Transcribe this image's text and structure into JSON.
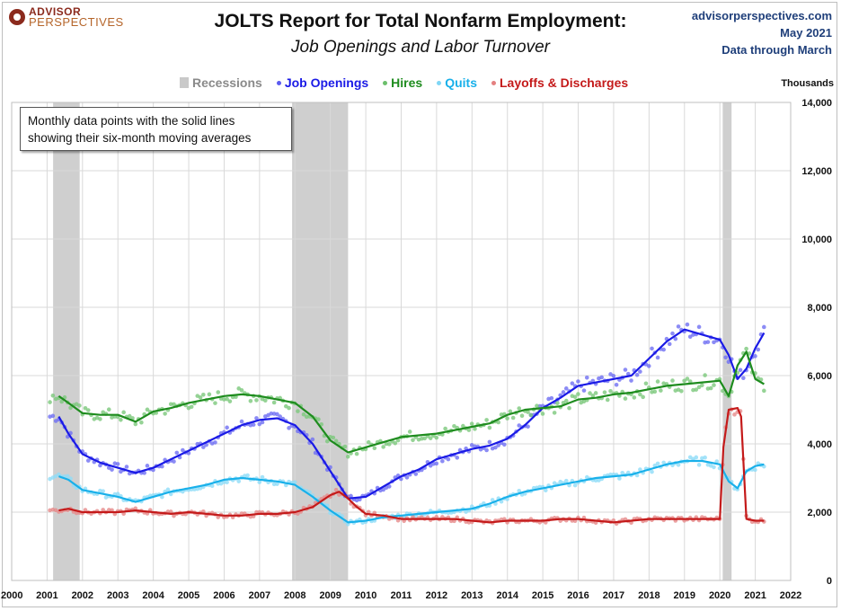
{
  "header": {
    "brand_line1": "ADVISOR",
    "brand_line2": "PERSPECTIVES",
    "title": "JOLTS Report for Total Nonfarm Employment:",
    "subtitle": "Job Openings and Labor Turnover",
    "site": "advisorperspectives.com",
    "date": "May 2021",
    "data_through": "Data through March"
  },
  "legend": {
    "recessions": "Recessions",
    "job_openings": "Job Openings",
    "hires": "Hires",
    "quits": "Quits",
    "layoffs": "Layoffs & Discharges"
  },
  "units_label": "Thousands",
  "note": {
    "line1": "Monthly data points with the solid lines",
    "line2": "showing their six-month moving averages"
  },
  "colors": {
    "job_openings": "#1a1ae6",
    "hires": "#1e8c1e",
    "quits": "#18b0ea",
    "layoffs": "#c41a1a",
    "recession": "#cfcfcf",
    "grid": "#d9d9d9"
  },
  "chart_data": {
    "type": "line",
    "x_axis": {
      "ticks": [
        "2000",
        "2001",
        "2002",
        "2003",
        "2004",
        "2005",
        "2006",
        "2007",
        "2008",
        "2009",
        "2010",
        "2011",
        "2012",
        "2013",
        "2014",
        "2015",
        "2016",
        "2017",
        "2018",
        "2019",
        "2020",
        "2021",
        "2022"
      ],
      "range": [
        2000,
        2022
      ]
    },
    "y_axis": {
      "ticks": [
        "0",
        "2,000",
        "4,000",
        "6,000",
        "8,000",
        "10,000",
        "12,000",
        "14,000"
      ],
      "range": [
        0,
        14000
      ],
      "side": "right"
    },
    "grid": true,
    "legend_position": "top",
    "recessions": [
      [
        2001.17,
        2001.92
      ],
      [
        2007.92,
        2009.5
      ],
      [
        2020.08,
        2020.33
      ]
    ],
    "series": [
      {
        "name": "Job Openings",
        "key": "job_openings",
        "x": [
          2001.33,
          2001.6,
          2002.0,
          2002.5,
          2003.0,
          2003.5,
          2004.0,
          2004.5,
          2005.0,
          2005.5,
          2006.0,
          2006.5,
          2007.0,
          2007.5,
          2008.0,
          2008.5,
          2009.0,
          2009.5,
          2010.0,
          2010.5,
          2011.0,
          2011.5,
          2012.0,
          2012.5,
          2013.0,
          2013.5,
          2014.0,
          2014.5,
          2015.0,
          2015.5,
          2016.0,
          2016.5,
          2017.0,
          2017.5,
          2018.0,
          2018.5,
          2019.0,
          2019.5,
          2020.0,
          2020.25,
          2020.5,
          2020.75,
          2021.0,
          2021.25
        ],
        "values": [
          4800,
          4300,
          3700,
          3450,
          3300,
          3150,
          3300,
          3550,
          3800,
          4050,
          4300,
          4550,
          4700,
          4750,
          4550,
          4000,
          3200,
          2400,
          2450,
          2750,
          3050,
          3250,
          3550,
          3700,
          3850,
          3950,
          4150,
          4550,
          5050,
          5350,
          5700,
          5800,
          5900,
          6000,
          6500,
          7000,
          7350,
          7200,
          7050,
          6600,
          5900,
          6200,
          6800,
          7250
        ]
      },
      {
        "name": "Hires",
        "key": "hires",
        "x": [
          2001.33,
          2001.6,
          2002.0,
          2002.5,
          2003.0,
          2003.5,
          2004.0,
          2004.5,
          2005.0,
          2005.5,
          2006.0,
          2006.5,
          2007.0,
          2007.5,
          2008.0,
          2008.5,
          2009.0,
          2009.5,
          2010.0,
          2010.5,
          2011.0,
          2011.5,
          2012.0,
          2012.5,
          2013.0,
          2013.5,
          2014.0,
          2014.5,
          2015.0,
          2015.5,
          2016.0,
          2016.5,
          2017.0,
          2017.5,
          2018.0,
          2018.5,
          2019.0,
          2019.5,
          2020.0,
          2020.25,
          2020.5,
          2020.75,
          2021.0,
          2021.25
        ],
        "values": [
          5400,
          5200,
          4900,
          4850,
          4850,
          4650,
          4950,
          5050,
          5200,
          5300,
          5400,
          5450,
          5400,
          5300,
          5200,
          4800,
          4100,
          3750,
          3900,
          4050,
          4200,
          4250,
          4300,
          4400,
          4500,
          4600,
          4850,
          5000,
          5050,
          5100,
          5300,
          5350,
          5450,
          5500,
          5600,
          5700,
          5750,
          5800,
          5850,
          5400,
          6300,
          6700,
          5900,
          5750
        ]
      },
      {
        "name": "Quits",
        "key": "quits",
        "x": [
          2001.33,
          2001.6,
          2002.0,
          2002.5,
          2003.0,
          2003.5,
          2004.0,
          2004.5,
          2005.0,
          2005.5,
          2006.0,
          2006.5,
          2007.0,
          2007.5,
          2008.0,
          2008.5,
          2009.0,
          2009.5,
          2010.0,
          2010.5,
          2011.0,
          2011.5,
          2012.0,
          2012.5,
          2013.0,
          2013.5,
          2014.0,
          2014.5,
          2015.0,
          2015.5,
          2016.0,
          2016.5,
          2017.0,
          2017.5,
          2018.0,
          2018.5,
          2019.0,
          2019.5,
          2020.0,
          2020.25,
          2020.5,
          2020.75,
          2021.0,
          2021.25
        ],
        "values": [
          3050,
          2950,
          2650,
          2550,
          2450,
          2300,
          2450,
          2600,
          2700,
          2800,
          2950,
          3000,
          2950,
          2900,
          2800,
          2450,
          2050,
          1700,
          1750,
          1850,
          1900,
          1950,
          2000,
          2050,
          2100,
          2250,
          2450,
          2600,
          2700,
          2800,
          2900,
          3000,
          3050,
          3100,
          3250,
          3400,
          3500,
          3500,
          3400,
          2900,
          2700,
          3200,
          3350,
          3400
        ]
      },
      {
        "name": "Layoffs & Discharges",
        "key": "layoffs",
        "x": [
          2001.33,
          2001.6,
          2002.0,
          2002.5,
          2003.0,
          2003.5,
          2004.0,
          2004.5,
          2005.0,
          2005.5,
          2006.0,
          2006.5,
          2007.0,
          2007.5,
          2008.0,
          2008.5,
          2009.0,
          2009.25,
          2009.5,
          2009.75,
          2010.0,
          2010.5,
          2011.0,
          2011.5,
          2012.0,
          2012.5,
          2013.0,
          2013.5,
          2014.0,
          2014.5,
          2015.0,
          2015.5,
          2016.0,
          2016.5,
          2017.0,
          2017.5,
          2018.0,
          2018.5,
          2019.0,
          2019.5,
          2020.0,
          2020.1,
          2020.25,
          2020.5,
          2020.6,
          2020.75,
          2021.0,
          2021.25
        ],
        "values": [
          2050,
          2100,
          2000,
          2000,
          2000,
          2050,
          2000,
          1950,
          2000,
          1950,
          1900,
          1900,
          1950,
          1950,
          2000,
          2150,
          2500,
          2600,
          2400,
          2150,
          1950,
          1900,
          1800,
          1800,
          1800,
          1800,
          1750,
          1700,
          1750,
          1750,
          1750,
          1800,
          1800,
          1750,
          1700,
          1750,
          1800,
          1800,
          1800,
          1800,
          1800,
          3900,
          5000,
          5050,
          4800,
          1800,
          1750,
          1750
        ]
      }
    ]
  }
}
